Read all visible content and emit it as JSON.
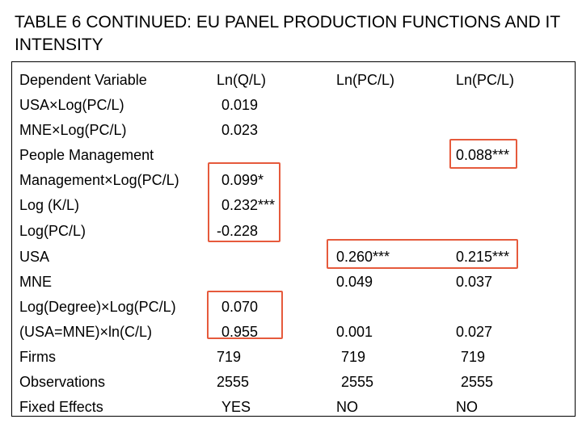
{
  "title": "TABLE 6 CONTINUED: EU PANEL PRODUCTION FUNCTIONS AND IT INTENSITY",
  "table": {
    "headers": [
      "Dependent Variable",
      "Ln(Q/L)",
      "Ln(PC/L)",
      "Ln(PC/L)"
    ],
    "rows": [
      {
        "label": "USA×Log(PC/L)",
        "c1": "0.019",
        "c2": "",
        "c3": ""
      },
      {
        "label": "MNE×Log(PC/L)",
        "c1": "0.023",
        "c2": "",
        "c3": ""
      },
      {
        "label": "People Management",
        "c1": "",
        "c2": "",
        "c3": "0.088***"
      },
      {
        "label": "Management×Log(PC/L)",
        "c1": "0.099*",
        "c2": "",
        "c3": ""
      },
      {
        "label": "Log (K/L)",
        "c1": "0.232***",
        "c2": "",
        "c3": ""
      },
      {
        "label": "Log(PC/L)",
        "c1": "-0.228",
        "c2": "",
        "c3": ""
      },
      {
        "label": "USA",
        "c1": "",
        "c2": "0.260***",
        "c3": "0.215***"
      },
      {
        "label": "MNE",
        "c1": "",
        "c2": "0.049",
        "c3": "0.037"
      },
      {
        "label": "Log(Degree)×Log(PC/L)",
        "c1": "0.070",
        "c2": "",
        "c3": ""
      },
      {
        "label": "(USA=MNE)×ln(C/L)",
        "c1": "0.955",
        "c2": "0.001",
        "c3": "0.027"
      },
      {
        "label": "Firms",
        "c1": "719",
        "c2": "719",
        "c3": "719"
      },
      {
        "label": "Observations",
        "c1": "2555",
        "c2": "2555",
        "c3": "2555"
      },
      {
        "label": "Fixed Effects",
        "c1": "YES",
        "c2": "NO",
        "c3": "NO"
      }
    ]
  },
  "colors": {
    "highlight": "#e65a3c",
    "text": "#000000",
    "background": "#ffffff"
  }
}
